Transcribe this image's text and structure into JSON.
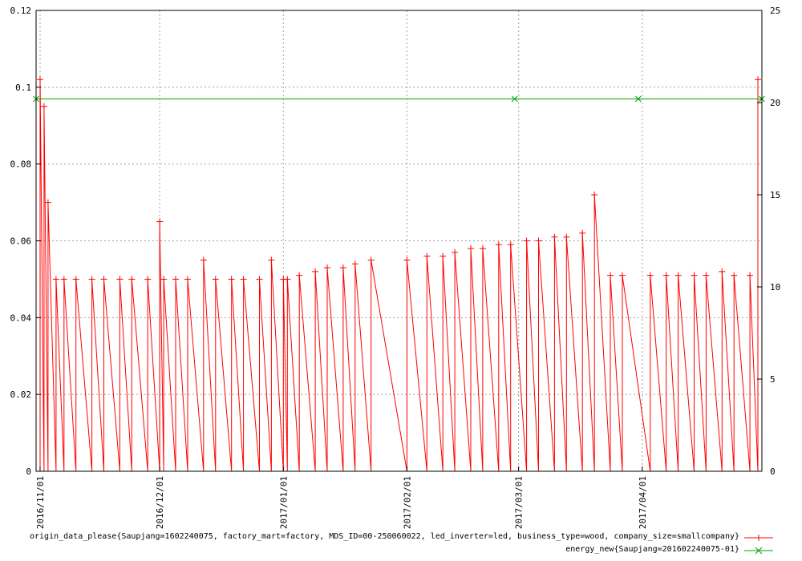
{
  "chart_data": {
    "type": "line",
    "title": "",
    "xlabel": "",
    "ylabel": "",
    "y2label": "",
    "grid": true,
    "legend_position": "bottom-right",
    "x_range": [
      "2016-10-31",
      "2017-05-01"
    ],
    "ylim": [
      0,
      0.12
    ],
    "y2lim": [
      0,
      25
    ],
    "y_ticks": [
      "0",
      "0.02",
      "0.04",
      "0.06",
      "0.08",
      "0.1",
      "0.12"
    ],
    "y2_ticks": [
      "0",
      "5",
      "10",
      "15",
      "20",
      "25"
    ],
    "x_ticks": [
      "2016/11/01",
      "2016/12/01",
      "2017/01/01",
      "2017/02/01",
      "2017/03/01",
      "2017/04/01"
    ],
    "colors": {
      "origin": "#ff0000",
      "energy": "#00a000",
      "grid": "#a0a0a0"
    },
    "series": [
      {
        "name": "origin_data_please{Saupjang=1602240075, factory_mart=factory, MDS_ID=00-250060022, led_inverter=led, business_type=wood, company_size=smallcompany}",
        "axis": "y",
        "marker": "plus",
        "color": "#ff0000",
        "x": [
          "2016-11-01",
          "2016-11-02",
          "2016-11-03",
          "2016-11-05",
          "2016-11-07",
          "2016-11-10",
          "2016-11-14",
          "2016-11-17",
          "2016-11-21",
          "2016-11-24",
          "2016-11-28",
          "2016-12-01",
          "2016-12-02",
          "2016-12-05",
          "2016-12-08",
          "2016-12-12",
          "2016-12-15",
          "2016-12-19",
          "2016-12-22",
          "2016-12-26",
          "2016-12-29",
          "2017-01-01",
          "2017-01-02",
          "2017-01-05",
          "2017-01-09",
          "2017-01-12",
          "2017-01-16",
          "2017-01-19",
          "2017-01-23",
          "2017-02-01",
          "2017-02-06",
          "2017-02-10",
          "2017-02-13",
          "2017-02-17",
          "2017-02-20",
          "2017-02-24",
          "2017-02-27",
          "2017-03-03",
          "2017-03-06",
          "2017-03-10",
          "2017-03-13",
          "2017-03-17",
          "2017-03-20",
          "2017-03-24",
          "2017-03-27",
          "2017-04-03",
          "2017-04-07",
          "2017-04-10",
          "2017-04-14",
          "2017-04-17",
          "2017-04-21",
          "2017-04-24",
          "2017-04-28",
          "2017-04-30"
        ],
        "y": [
          0.102,
          0.095,
          0.07,
          0.05,
          0.05,
          0.05,
          0.05,
          0.05,
          0.05,
          0.05,
          0.05,
          0.065,
          0.05,
          0.05,
          0.05,
          0.055,
          0.05,
          0.05,
          0.05,
          0.05,
          0.055,
          0.05,
          0.05,
          0.051,
          0.052,
          0.053,
          0.053,
          0.054,
          0.055,
          0.055,
          0.056,
          0.056,
          0.057,
          0.058,
          0.058,
          0.059,
          0.059,
          0.06,
          0.06,
          0.061,
          0.061,
          0.062,
          0.072,
          0.051,
          0.051,
          0.051,
          0.051,
          0.051,
          0.051,
          0.051,
          0.052,
          0.051,
          0.051,
          0.102
        ]
      },
      {
        "name": "energy_new{Saupjang=201602240075-01}",
        "axis": "y2",
        "marker": "x",
        "color": "#00a000",
        "x": [
          "2016-10-31",
          "2017-02-28",
          "2017-03-31",
          "2017-05-01"
        ],
        "y": [
          20.2,
          20.2,
          20.2,
          20.2
        ]
      }
    ]
  }
}
